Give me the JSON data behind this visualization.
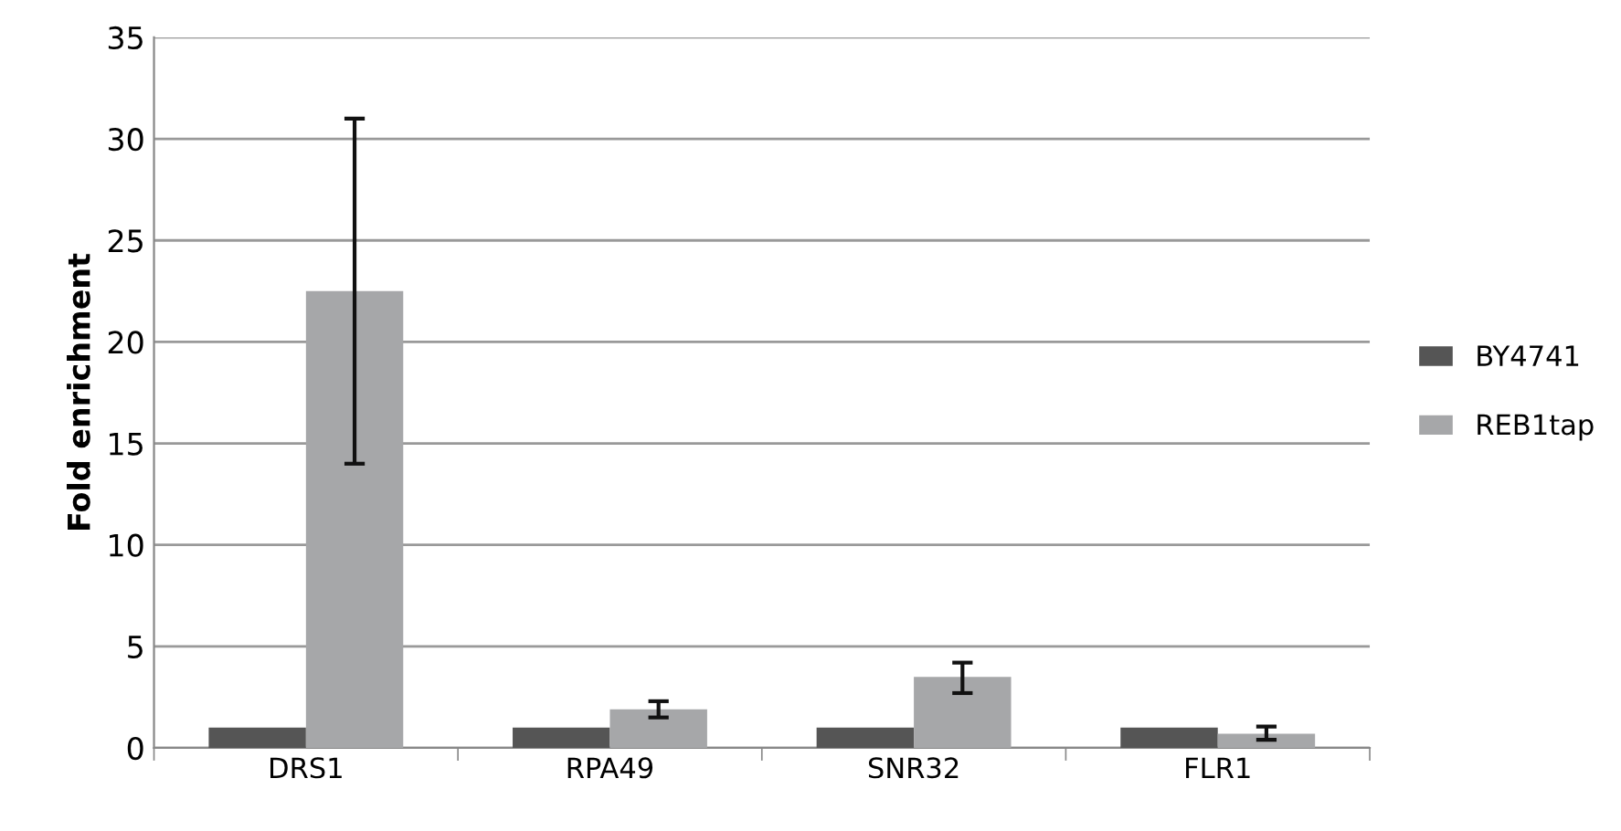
{
  "chart_data": {
    "type": "bar",
    "ylabel": "Fold enrichment",
    "categories": [
      "DRS1",
      "RPA49",
      "SNR32",
      "FLR1"
    ],
    "series": [
      {
        "name": "BY4741",
        "color": "#555555",
        "values": [
          1,
          1,
          1,
          1
        ]
      },
      {
        "name": "REB1tap",
        "color": "#a6a7a9",
        "values": [
          22.5,
          1.9,
          3.5,
          0.7
        ],
        "errors": [
          [
            14,
            31
          ],
          [
            1.5,
            2.3
          ],
          [
            2.7,
            4.2
          ],
          [
            0.4,
            1.05
          ]
        ]
      }
    ],
    "ylim": [
      0,
      35
    ],
    "yticks": [
      0,
      5,
      10,
      15,
      20,
      25,
      30,
      35
    ],
    "grid": "y",
    "legend": "right"
  }
}
